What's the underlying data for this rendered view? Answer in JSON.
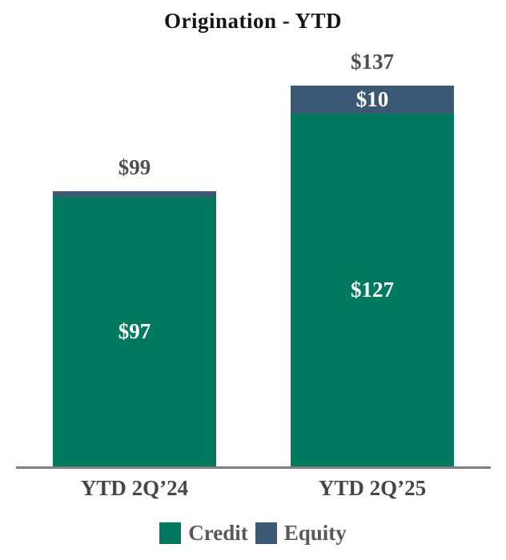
{
  "chart_data": {
    "type": "bar",
    "stacked": true,
    "title": "Origination - YTD",
    "categories": [
      "YTD 2Q’24",
      "YTD 2Q’25"
    ],
    "series": [
      {
        "name": "Credit",
        "color": "#00795E",
        "values": [
          97,
          127
        ],
        "labels": [
          "$97",
          "$127"
        ]
      },
      {
        "name": "Equity",
        "color": "#3B5974",
        "values": [
          2,
          10
        ],
        "labels": [
          "",
          "$10"
        ]
      }
    ],
    "totals": [
      99,
      137
    ],
    "total_labels": [
      "$99",
      "$137"
    ],
    "value_prefix": "$",
    "ylim": [
      0,
      137
    ],
    "grid": false,
    "y_axis_shown": false,
    "baseline_color": "#7F7F7F",
    "legend_position": "bottom",
    "legend": [
      {
        "label": "Credit",
        "color": "#00795E"
      },
      {
        "label": "Equity",
        "color": "#3B5974"
      }
    ]
  }
}
